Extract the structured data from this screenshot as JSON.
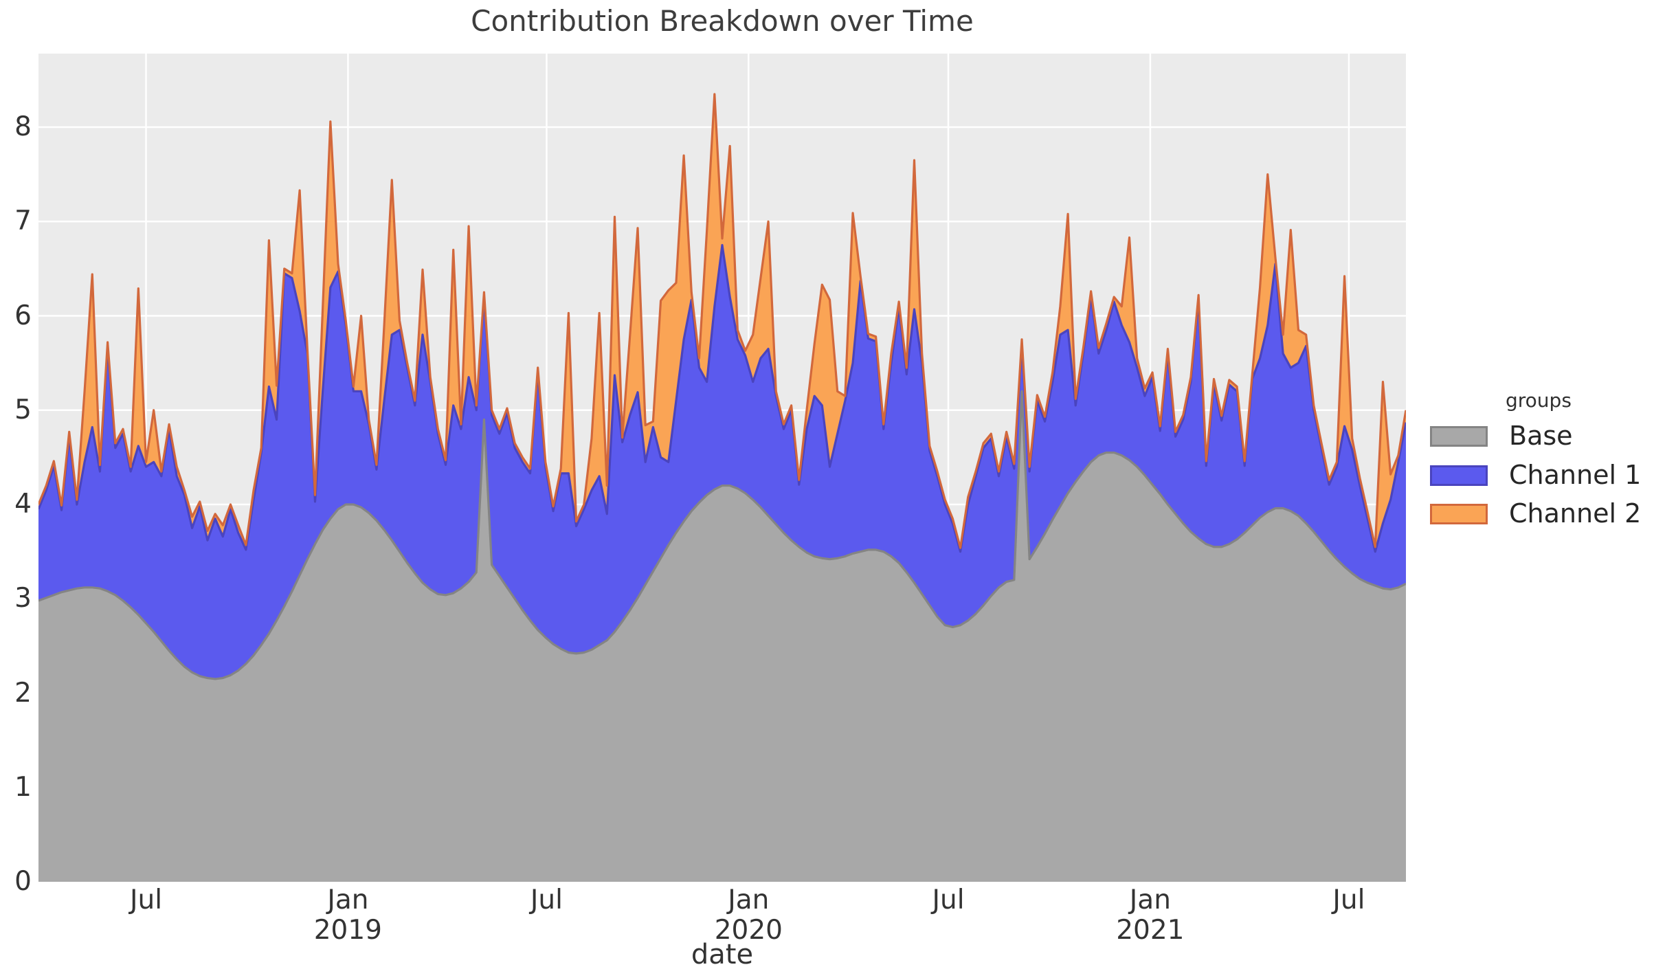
{
  "title": "Contribution Breakdown over Time",
  "chart_data": {
    "type": "area",
    "stacked": true,
    "title": "Contribution Breakdown over Time",
    "xlabel": "date",
    "ylabel": "",
    "legend_title": "groups",
    "legend_position": "right",
    "grid": true,
    "panel_bg": "#ebebeb",
    "grid_color": "#ffffff",
    "ylim": [
      0,
      8.78
    ],
    "yticks": [
      0,
      1,
      2,
      3,
      4,
      5,
      6,
      7,
      8
    ],
    "x_start": "2018-03-25",
    "x_step_days": 7,
    "xticks": [
      {
        "date": "2018-07-01",
        "label": "Jul",
        "year": ""
      },
      {
        "date": "2019-01-01",
        "label": "Jan",
        "year": "2019"
      },
      {
        "date": "2019-07-01",
        "label": "Jul",
        "year": ""
      },
      {
        "date": "2020-01-01",
        "label": "Jan",
        "year": "2020"
      },
      {
        "date": "2020-07-01",
        "label": "Jul",
        "year": ""
      },
      {
        "date": "2021-01-01",
        "label": "Jan",
        "year": "2021"
      },
      {
        "date": "2021-07-01",
        "label": "Jul",
        "year": ""
      }
    ],
    "series": [
      {
        "name": "Base",
        "fill": "#a8a8a8",
        "stroke": "#848484",
        "values": [
          2.98,
          3.01,
          3.04,
          3.07,
          3.09,
          3.11,
          3.12,
          3.12,
          3.11,
          3.08,
          3.04,
          2.98,
          2.91,
          2.83,
          2.74,
          2.65,
          2.55,
          2.45,
          2.36,
          2.28,
          2.22,
          2.18,
          2.16,
          2.15,
          2.16,
          2.19,
          2.24,
          2.31,
          2.4,
          2.51,
          2.63,
          2.77,
          2.92,
          3.08,
          3.25,
          3.42,
          3.58,
          3.73,
          3.85,
          3.95,
          4.0,
          4.0,
          3.97,
          3.91,
          3.83,
          3.73,
          3.62,
          3.5,
          3.38,
          3.27,
          3.17,
          3.1,
          3.05,
          3.04,
          3.06,
          3.11,
          3.18,
          3.28,
          4.9,
          3.36,
          3.24,
          3.12,
          3.0,
          2.88,
          2.77,
          2.67,
          2.59,
          2.52,
          2.47,
          2.43,
          2.42,
          2.43,
          2.46,
          2.51,
          2.56,
          2.65,
          2.76,
          2.88,
          3.01,
          3.15,
          3.29,
          3.43,
          3.57,
          3.7,
          3.82,
          3.93,
          4.02,
          4.1,
          4.16,
          4.2,
          4.2,
          4.17,
          4.12,
          4.05,
          3.97,
          3.88,
          3.79,
          3.7,
          3.62,
          3.55,
          3.49,
          3.45,
          3.43,
          3.42,
          3.43,
          3.45,
          3.48,
          3.5,
          3.52,
          3.52,
          3.5,
          3.45,
          3.38,
          3.28,
          3.17,
          3.05,
          2.93,
          2.81,
          2.72,
          2.7,
          2.72,
          2.77,
          2.84,
          2.93,
          3.03,
          3.12,
          3.18,
          3.2,
          5.2,
          3.42,
          3.55,
          3.69,
          3.84,
          3.98,
          4.12,
          4.24,
          4.35,
          4.45,
          4.52,
          4.55,
          4.55,
          4.52,
          4.47,
          4.4,
          4.31,
          4.21,
          4.11,
          4.0,
          3.9,
          3.8,
          3.71,
          3.64,
          3.58,
          3.55,
          3.55,
          3.58,
          3.63,
          3.7,
          3.78,
          3.86,
          3.92,
          3.96,
          3.96,
          3.93,
          3.88,
          3.8,
          3.71,
          3.61,
          3.51,
          3.42,
          3.34,
          3.27,
          3.21,
          3.17,
          3.14,
          3.11,
          3.1,
          3.12,
          3.16
        ]
      },
      {
        "name": "Channel 1",
        "fill": "#5b5aee",
        "stroke": "#4a44be",
        "values": [
          0.97,
          1.14,
          1.37,
          0.87,
          1.63,
          0.89,
          1.33,
          1.7,
          1.24,
          2.59,
          1.56,
          1.77,
          1.44,
          1.79,
          1.66,
          1.8,
          1.75,
          2.35,
          1.94,
          1.82,
          1.53,
          1.8,
          1.46,
          1.7,
          1.5,
          1.76,
          1.46,
          1.21,
          1.65,
          2.04,
          2.62,
          2.13,
          3.53,
          3.32,
          2.8,
          2.18,
          0.45,
          1.47,
          2.45,
          2.52,
          1.9,
          1.2,
          1.23,
          0.94,
          0.54,
          1.37,
          2.18,
          2.35,
          2.07,
          1.78,
          2.63,
          2.2,
          1.7,
          1.38,
          1.99,
          1.69,
          2.17,
          1.72,
          1.3,
          1.59,
          1.51,
          1.85,
          1.6,
          1.57,
          1.56,
          2.73,
          1.81,
          1.41,
          1.86,
          1.9,
          1.35,
          1.52,
          1.69,
          1.79,
          1.34,
          2.72,
          1.9,
          2.07,
          2.18,
          1.3,
          1.53,
          1.07,
          0.88,
          1.4,
          1.93,
          2.24,
          1.43,
          1.2,
          1.94,
          2.55,
          2.0,
          1.58,
          1.46,
          1.25,
          1.58,
          1.77,
          1.36,
          1.1,
          1.38,
          0.66,
          1.31,
          1.7,
          1.62,
          0.98,
          1.32,
          1.65,
          2.02,
          2.87,
          2.24,
          2.21,
          1.3,
          2.05,
          2.71,
          2.1,
          2.9,
          2.45,
          1.64,
          1.49,
          1.28,
          1.1,
          0.78,
          1.23,
          1.46,
          1.67,
          1.67,
          1.18,
          1.54,
          1.18,
          0.5,
          0.93,
          1.55,
          1.19,
          1.46,
          1.82,
          1.73,
          0.81,
          1.25,
          1.76,
          1.08,
          1.3,
          1.6,
          1.38,
          1.25,
          1.05,
          0.84,
          1.14,
          0.67,
          1.6,
          0.82,
          1.1,
          1.59,
          2.53,
          0.83,
          1.73,
          1.34,
          1.69,
          1.57,
          0.71,
          1.55,
          1.69,
          1.98,
          2.59,
          1.64,
          1.52,
          1.62,
          1.88,
          1.29,
          0.99,
          0.7,
          0.98,
          1.49,
          1.31,
          0.99,
          0.68,
          0.36,
          0.69,
          0.95,
          1.33,
          1.71
        ]
      },
      {
        "name": "Channel 2",
        "fill": "#faa455",
        "stroke": "#d2683c",
        "values": [
          0.05,
          0.05,
          0.05,
          0.05,
          0.05,
          0.05,
          0.75,
          1.62,
          0.07,
          0.05,
          0.05,
          0.05,
          0.05,
          1.67,
          0.05,
          0.55,
          0.05,
          0.05,
          0.1,
          0.05,
          0.12,
          0.05,
          0.1,
          0.05,
          0.12,
          0.05,
          0.08,
          0.05,
          0.1,
          0.05,
          1.55,
          0.36,
          0.05,
          0.05,
          1.28,
          0.05,
          0.07,
          0.88,
          1.76,
          0.08,
          0.05,
          0.05,
          0.8,
          0.05,
          0.05,
          0.8,
          1.64,
          0.1,
          0.05,
          0.05,
          0.69,
          0.05,
          0.05,
          0.05,
          1.65,
          0.05,
          1.6,
          0.05,
          0.05,
          0.05,
          0.05,
          0.05,
          0.05,
          0.05,
          0.05,
          0.05,
          0.05,
          0.05,
          0.05,
          1.7,
          0.05,
          0.05,
          0.55,
          1.73,
          0.3,
          1.68,
          0.05,
          0.85,
          1.74,
          0.39,
          0.06,
          1.66,
          1.82,
          1.25,
          1.95,
          0.08,
          0.1,
          1.6,
          2.25,
          0.07,
          1.6,
          0.1,
          0.05,
          0.5,
          0.85,
          1.35,
          0.05,
          0.05,
          0.05,
          0.05,
          0.2,
          0.55,
          1.28,
          1.77,
          0.45,
          0.05,
          1.59,
          0.05,
          0.05,
          0.05,
          0.05,
          0.1,
          0.06,
          0.07,
          1.58,
          0.1,
          0.05,
          0.05,
          0.05,
          0.05,
          0.04,
          0.08,
          0.05,
          0.05,
          0.05,
          0.05,
          0.05,
          0.05,
          0.05,
          0.05,
          0.06,
          0.05,
          0.1,
          0.3,
          1.23,
          0.07,
          0.06,
          0.05,
          0.06,
          0.07,
          0.05,
          0.2,
          1.11,
          0.1,
          0.08,
          0.05,
          0.05,
          0.05,
          0.05,
          0.05,
          0.05,
          0.05,
          0.05,
          0.05,
          0.05,
          0.05,
          0.05,
          0.05,
          0.05,
          0.75,
          1.6,
          0.07,
          0.2,
          1.46,
          0.35,
          0.12,
          0.05,
          0.05,
          0.05,
          0.05,
          1.59,
          0.12,
          0.08,
          0.07,
          0.05,
          1.5,
          0.27,
          0.07,
          0.13
        ]
      }
    ]
  }
}
